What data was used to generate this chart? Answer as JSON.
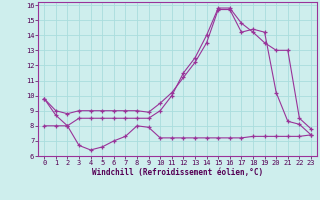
{
  "xlabel": "Windchill (Refroidissement éolien,°C)",
  "background_color": "#ceeeed",
  "grid_color": "#aadddd",
  "line_color": "#993399",
  "xlim": [
    -0.5,
    23.5
  ],
  "ylim": [
    6,
    16.2
  ],
  "yticks": [
    6,
    7,
    8,
    9,
    10,
    11,
    12,
    13,
    14,
    15,
    16
  ],
  "xticks": [
    0,
    1,
    2,
    3,
    4,
    5,
    6,
    7,
    8,
    9,
    10,
    11,
    12,
    13,
    14,
    15,
    16,
    17,
    18,
    19,
    20,
    21,
    22,
    23
  ],
  "series": [
    {
      "x": [
        0,
        1,
        2,
        3,
        4,
        5,
        6,
        7,
        8,
        9,
        10,
        11,
        12,
        13,
        14,
        15,
        16,
        17,
        18,
        19,
        20,
        21,
        22,
        23
      ],
      "y": [
        9.8,
        9.0,
        8.8,
        9.0,
        9.0,
        9.0,
        9.0,
        9.0,
        9.0,
        8.9,
        9.5,
        10.2,
        11.2,
        12.2,
        13.5,
        15.7,
        15.7,
        14.2,
        14.4,
        14.2,
        10.2,
        8.3,
        8.1,
        7.4
      ]
    },
    {
      "x": [
        0,
        1,
        2,
        3,
        4,
        5,
        6,
        7,
        8,
        9,
        10,
        11,
        12,
        13,
        14,
        15,
        16,
        17,
        18,
        19,
        20,
        21,
        22,
        23
      ],
      "y": [
        9.8,
        8.7,
        8.0,
        8.5,
        8.5,
        8.5,
        8.5,
        8.5,
        8.5,
        8.5,
        9.0,
        10.0,
        11.5,
        12.5,
        14.0,
        15.8,
        15.8,
        14.8,
        14.2,
        13.5,
        13.0,
        13.0,
        8.5,
        7.8
      ]
    },
    {
      "x": [
        0,
        1,
        2,
        3,
        4,
        5,
        6,
        7,
        8,
        9,
        10,
        11,
        12,
        13,
        14,
        15,
        16,
        17,
        18,
        19,
        20,
        21,
        22,
        23
      ],
      "y": [
        8.0,
        8.0,
        8.0,
        6.7,
        6.4,
        6.6,
        7.0,
        7.3,
        8.0,
        7.9,
        7.2,
        7.2,
        7.2,
        7.2,
        7.2,
        7.2,
        7.2,
        7.2,
        7.3,
        7.3,
        7.3,
        7.3,
        7.3,
        7.4
      ]
    }
  ]
}
